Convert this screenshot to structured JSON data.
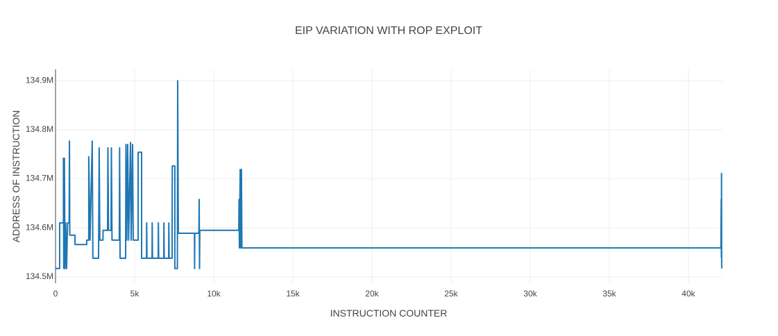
{
  "chart_data": {
    "type": "line",
    "title": "EIP VARIATION WITH ROP EXPLOIT",
    "x_label": "INSTRUCTION  COUNTER",
    "y_label": "ADDRESS OF INSTRUCTION",
    "xlim": [
      0,
      42150
    ],
    "ylim": [
      134487000,
      134923000
    ],
    "xticks": [
      0,
      {
        "value": 5000,
        "label": "5k"
      },
      {
        "value": 10000,
        "label": "10k"
      },
      {
        "value": 15000,
        "label": "15k"
      },
      {
        "value": 20000,
        "label": "20k"
      },
      {
        "value": 25000,
        "label": "25k"
      },
      {
        "value": 30000,
        "label": "30k"
      },
      {
        "value": 35000,
        "label": "35k"
      },
      {
        "value": 40000,
        "label": "40k"
      }
    ],
    "yticks": [
      {
        "value": 134500000,
        "label": "134.5M"
      },
      {
        "value": 134600000,
        "label": "134.6M"
      },
      {
        "value": 134700000,
        "label": "134.7M"
      },
      {
        "value": 134800000,
        "label": "134.8M"
      },
      {
        "value": 134900000,
        "label": "134.9M"
      }
    ],
    "grid": true,
    "series": [
      {
        "color": "#1f77b4",
        "x": [
          0,
          260,
          260,
          500,
          500,
          520,
          560,
          600,
          640,
          700,
          760,
          860,
          880,
          900,
          1230,
          1230,
          1970,
          1970,
          2100,
          2100,
          2180,
          2320,
          2360,
          2720,
          2760,
          2800,
          3000,
          3000,
          3290,
          3310,
          3350,
          3510,
          3530,
          3570,
          3700,
          4030,
          4050,
          4080,
          4430,
          4450,
          4500,
          4560,
          4620,
          4740,
          4780,
          4870,
          4910,
          5220,
          5220,
          5440,
          5440,
          5750,
          5760,
          5780,
          6100,
          6110,
          6130,
          6490,
          6500,
          6520,
          6840,
          6850,
          6870,
          7150,
          7160,
          7180,
          7370,
          7370,
          7380,
          7540,
          7540,
          7700,
          7720,
          7760,
          8780,
          8790,
          8800,
          9060,
          9080,
          9100,
          9120,
          11580,
          11600,
          11620,
          11670,
          11700,
          11750,
          11780,
          11840,
          42050,
          42070,
          42080,
          42090,
          42100
        ],
        "values": [
          134517000,
          134517000,
          134610000,
          134610000,
          134742000,
          134517000,
          134742000,
          134517000,
          134610000,
          134517000,
          134610000,
          134610000,
          134777000,
          134585000,
          134585000,
          134566000,
          134566000,
          134575000,
          134575000,
          134745000,
          134575000,
          134777000,
          134538000,
          134538000,
          134763000,
          134575000,
          134575000,
          134595000,
          134595000,
          134763000,
          134595000,
          134595000,
          134763000,
          134575000,
          134575000,
          134575000,
          134763000,
          134538000,
          134538000,
          134770000,
          134575000,
          134770000,
          134575000,
          134774000,
          134575000,
          134770000,
          134575000,
          134575000,
          134754000,
          134754000,
          134538000,
          134538000,
          134610000,
          134538000,
          134538000,
          134610000,
          134538000,
          134538000,
          134610000,
          134538000,
          134538000,
          134610000,
          134538000,
          134538000,
          134610000,
          134538000,
          134538000,
          134610000,
          134726000,
          134726000,
          134517000,
          134517000,
          134900000,
          134589000,
          134589000,
          134517000,
          134589000,
          134589000,
          134658000,
          134517000,
          134595000,
          134595000,
          134658000,
          134559000,
          134719000,
          134559000,
          134719000,
          134559000,
          134559000,
          134559000,
          134658000,
          134540000,
          134711000,
          134517000
        ]
      }
    ]
  }
}
